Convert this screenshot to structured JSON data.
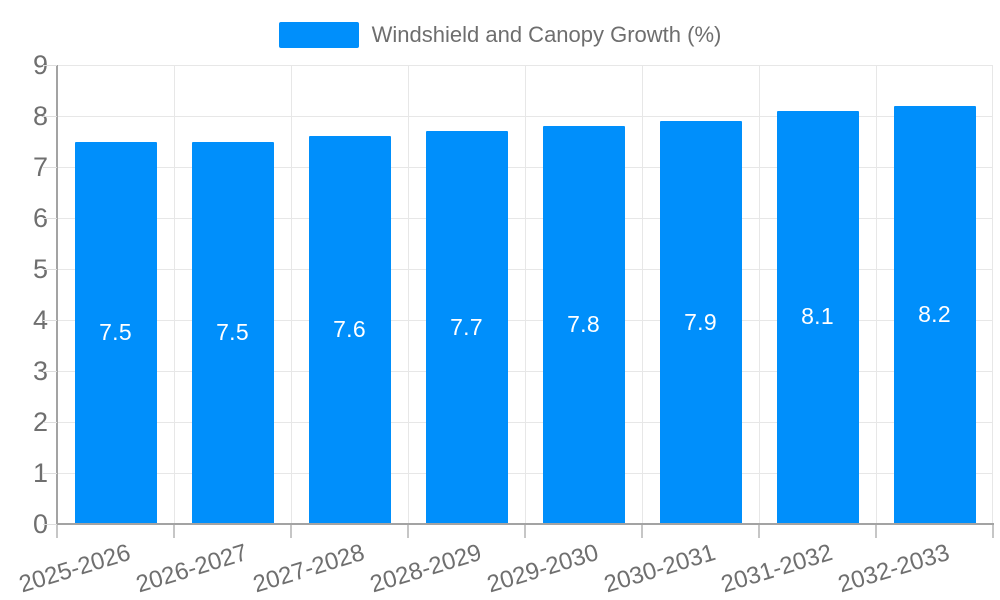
{
  "chart_data": {
    "type": "bar",
    "title": "Windshield and Canopy Growth (%)",
    "categories": [
      "2025-2026",
      "2026-2027",
      "2027-2028",
      "2028-2029",
      "2029-2030",
      "2030-2031",
      "2031-2032",
      "2032-2033"
    ],
    "values": [
      7.5,
      7.5,
      7.6,
      7.7,
      7.8,
      7.9,
      8.1,
      8.2
    ],
    "value_labels": [
      "7.5",
      "7.5",
      "7.6",
      "7.7",
      "7.8",
      "7.9",
      "8.1",
      "8.2"
    ],
    "xlabel": "",
    "ylabel": "",
    "ylim": [
      0,
      9
    ],
    "yticks": [
      0,
      1,
      2,
      3,
      4,
      5,
      6,
      7,
      8,
      9
    ],
    "ytick_labels": [
      "0",
      "1",
      "2",
      "3",
      "4",
      "5",
      "6",
      "7",
      "8",
      "9"
    ],
    "grid": true,
    "legend": {
      "position": "top-center",
      "items": [
        {
          "label": "Windshield and Canopy Growth (%)",
          "color": "#008FFB"
        }
      ]
    },
    "colors": {
      "bar": "#008FFB",
      "grid": "#e7e7e7",
      "axis": "#a3a3a3",
      "x_tick": "#c6c6c6",
      "y_tick": "#dedede",
      "axis_label": "#6f6f6f",
      "data_label": "#ffffff",
      "legend_label": "#6e6e6e",
      "background": "#ffffff"
    }
  }
}
